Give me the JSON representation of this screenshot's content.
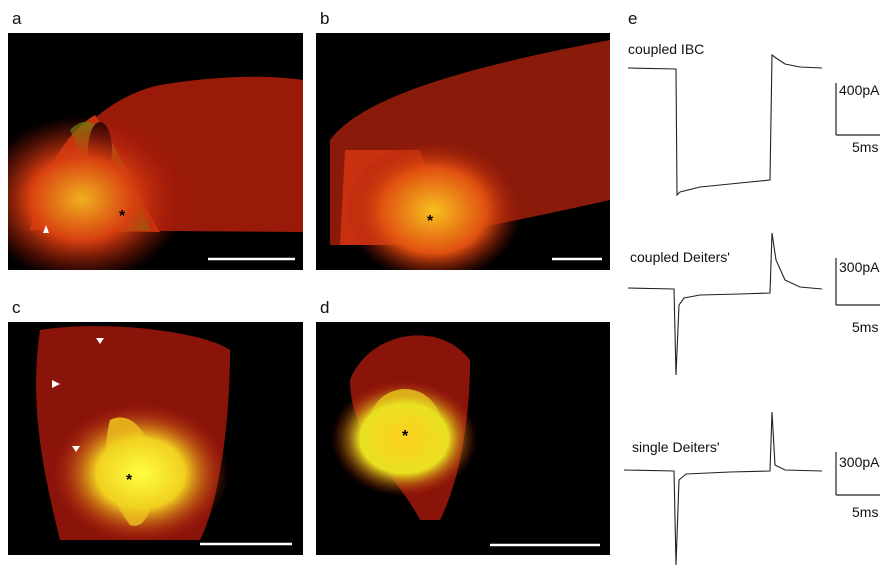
{
  "panels": [
    {
      "label": "a",
      "marker": "*"
    },
    {
      "label": "b",
      "marker": "*"
    },
    {
      "label": "c",
      "marker": "*"
    },
    {
      "label": "d",
      "marker": "*"
    },
    {
      "label": "e"
    }
  ],
  "traces": [
    {
      "label": "coupled IBC",
      "current_scale": "400pA",
      "time_scale": "5ms"
    },
    {
      "label": "coupled Deiters'",
      "current_scale": "300pA",
      "time_scale": "5ms"
    },
    {
      "label": "single Deiters'",
      "current_scale": "300pA",
      "time_scale": "5ms"
    }
  ]
}
